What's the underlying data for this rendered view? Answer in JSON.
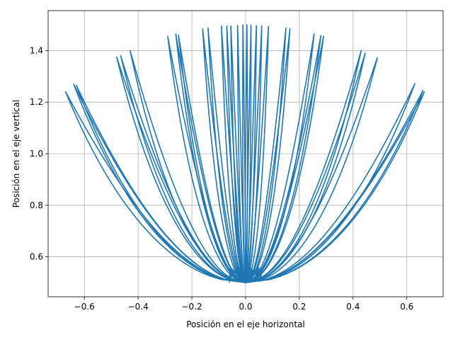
{
  "chart_data": {
    "type": "line",
    "title": "",
    "xlabel": "Posición en el eje horizontal",
    "ylabel": "Posición en el eje vertical",
    "xlim": [
      -0.735,
      0.735
    ],
    "ylim": [
      0.445,
      1.555
    ],
    "grid": true,
    "x_ticks": [
      {
        "value": -0.6,
        "label": "−0.6"
      },
      {
        "value": -0.4,
        "label": "−0.4"
      },
      {
        "value": -0.2,
        "label": "−0.2"
      },
      {
        "value": 0.0,
        "label": "0.0"
      },
      {
        "value": 0.2,
        "label": "0.2"
      },
      {
        "value": 0.4,
        "label": "0.4"
      },
      {
        "value": 0.6,
        "label": "0.6"
      }
    ],
    "y_ticks": [
      {
        "value": 0.6,
        "label": "0.6"
      },
      {
        "value": 0.8,
        "label": "0.8"
      },
      {
        "value": 1.0,
        "label": "1.0"
      },
      {
        "value": 1.2,
        "label": "1.2"
      },
      {
        "value": 1.4,
        "label": "1.4"
      }
    ],
    "series": [
      {
        "color": "#1f77b4",
        "loops": [
          {
            "peak_x": -0.67,
            "peak_y": 1.24,
            "width": 0.045
          },
          {
            "peak_x": -0.64,
            "peak_y": 1.27,
            "width": 0.04
          },
          {
            "peak_x": -0.63,
            "peak_y": 1.265,
            "width": 0.035
          },
          {
            "peak_x": -0.48,
            "peak_y": 1.375,
            "width": 0.035
          },
          {
            "peak_x": -0.465,
            "peak_y": 1.38,
            "width": 0.03
          },
          {
            "peak_x": -0.43,
            "peak_y": 1.4,
            "width": 0.03
          },
          {
            "peak_x": -0.29,
            "peak_y": 1.455,
            "width": 0.028
          },
          {
            "peak_x": -0.26,
            "peak_y": 1.465,
            "width": 0.026
          },
          {
            "peak_x": -0.25,
            "peak_y": 1.46,
            "width": 0.025
          },
          {
            "peak_x": -0.16,
            "peak_y": 1.485,
            "width": 0.022
          },
          {
            "peak_x": -0.14,
            "peak_y": 1.488,
            "width": 0.02
          },
          {
            "peak_x": -0.09,
            "peak_y": 1.495,
            "width": 0.018
          },
          {
            "peak_x": -0.07,
            "peak_y": 1.495,
            "width": 0.016
          },
          {
            "peak_x": -0.055,
            "peak_y": 1.496,
            "width": 0.015
          },
          {
            "peak_x": -0.03,
            "peak_y": 1.498,
            "width": 0.012
          },
          {
            "peak_x": -0.01,
            "peak_y": 1.5,
            "width": 0.01
          },
          {
            "peak_x": 0.005,
            "peak_y": 1.5,
            "width": 0.01
          },
          {
            "peak_x": 0.02,
            "peak_y": 1.499,
            "width": 0.011
          },
          {
            "peak_x": 0.04,
            "peak_y": 1.497,
            "width": 0.013
          },
          {
            "peak_x": 0.06,
            "peak_y": 1.496,
            "width": 0.015
          },
          {
            "peak_x": 0.085,
            "peak_y": 1.494,
            "width": 0.017
          },
          {
            "peak_x": 0.15,
            "peak_y": 1.488,
            "width": 0.02
          },
          {
            "peak_x": 0.165,
            "peak_y": 1.485,
            "width": 0.022
          },
          {
            "peak_x": 0.255,
            "peak_y": 1.465,
            "width": 0.025
          },
          {
            "peak_x": 0.28,
            "peak_y": 1.458,
            "width": 0.027
          },
          {
            "peak_x": 0.29,
            "peak_y": 1.455,
            "width": 0.028
          },
          {
            "peak_x": 0.43,
            "peak_y": 1.4,
            "width": 0.03
          },
          {
            "peak_x": 0.445,
            "peak_y": 1.39,
            "width": 0.032
          },
          {
            "peak_x": 0.49,
            "peak_y": 1.372,
            "width": 0.034
          },
          {
            "peak_x": 0.63,
            "peak_y": 1.272,
            "width": 0.038
          },
          {
            "peak_x": 0.66,
            "peak_y": 1.245,
            "width": 0.042
          },
          {
            "peak_x": 0.665,
            "peak_y": 1.24,
            "width": 0.045
          }
        ]
      }
    ]
  }
}
